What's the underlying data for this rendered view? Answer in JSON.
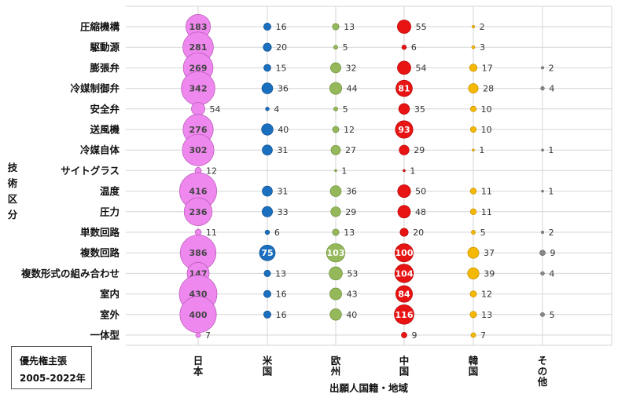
{
  "chart_data": {
    "type": "bubble",
    "ylabel": "技術区分",
    "xlabel": "出願人国籍・地域",
    "note_lines": [
      "優先権主張",
      "2005-2022年"
    ],
    "categories": [
      "圧縮機構",
      "駆動源",
      "膨張弁",
      "冷媒制御弁",
      "安全弁",
      "送風機",
      "冷媒自体",
      "サイトグラス",
      "温度",
      "圧力",
      "単数回路",
      "複数回路",
      "複数形式の組み合わせ",
      "室内",
      "室外",
      "一体型"
    ],
    "series": [
      {
        "name": "日本",
        "color": "#ee88ee",
        "values": [
          183,
          281,
          269,
          342,
          54,
          276,
          302,
          12,
          416,
          236,
          11,
          386,
          147,
          430,
          400,
          7
        ]
      },
      {
        "name": "米国",
        "color": "#1a6fbf",
        "values": [
          16,
          20,
          15,
          36,
          4,
          40,
          31,
          0,
          31,
          33,
          6,
          75,
          13,
          16,
          16,
          0
        ]
      },
      {
        "name": "欧州",
        "color": "#94b85a",
        "values": [
          13,
          5,
          32,
          44,
          5,
          12,
          27,
          1,
          36,
          29,
          13,
          103,
          53,
          43,
          40,
          0
        ]
      },
      {
        "name": "中国",
        "color": "#e81414",
        "values": [
          55,
          6,
          54,
          81,
          35,
          93,
          29,
          1,
          50,
          48,
          20,
          100,
          104,
          84,
          116,
          9
        ]
      },
      {
        "name": "韓国",
        "color": "#f5b800",
        "values": [
          2,
          3,
          17,
          28,
          10,
          10,
          1,
          0,
          11,
          11,
          5,
          37,
          39,
          12,
          13,
          7
        ]
      },
      {
        "name": "その他",
        "color": "#888888",
        "values": [
          0,
          0,
          2,
          4,
          0,
          0,
          1,
          0,
          1,
          0,
          2,
          9,
          4,
          0,
          5,
          0
        ]
      }
    ],
    "grid": true
  }
}
